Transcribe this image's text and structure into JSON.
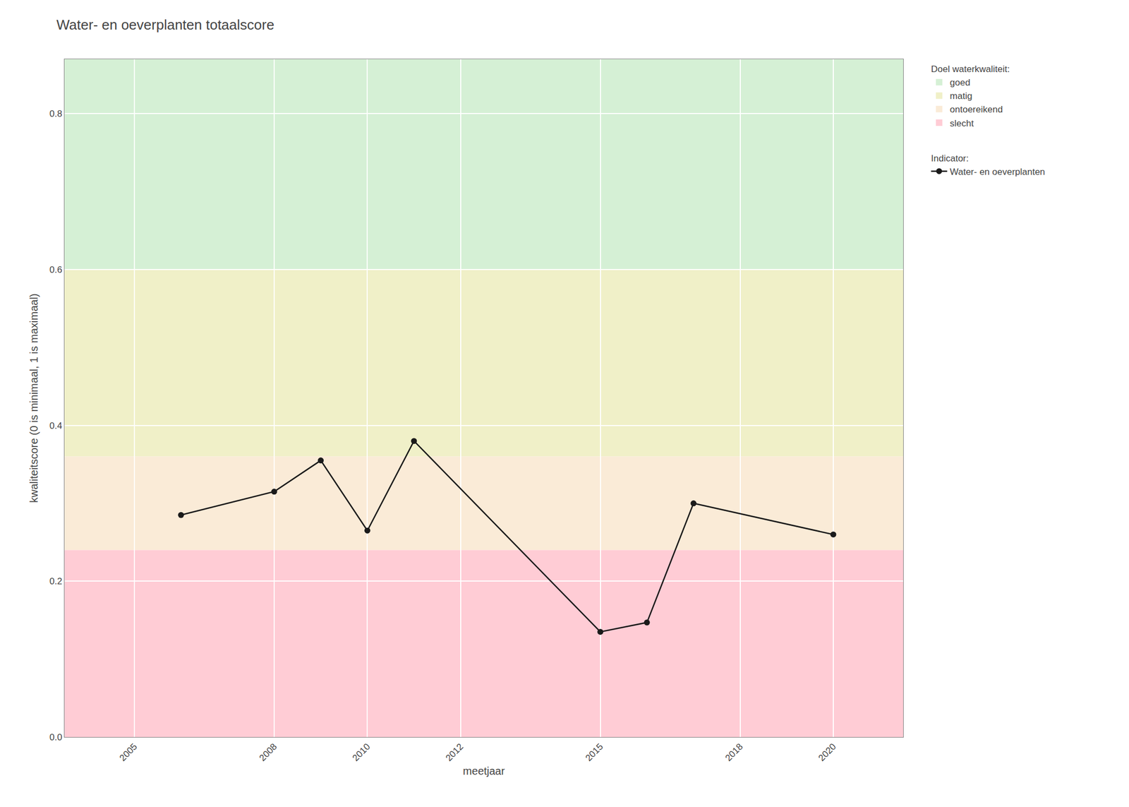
{
  "chart_data": {
    "type": "line",
    "title": "Water- en oeverplanten totaalscore",
    "x_label": "meetjaar",
    "y_label": "kwaliteitscore (0 is minimaal, 1 is maximaal)",
    "x": [
      2006,
      2008,
      2009,
      2010,
      2011,
      2015,
      2016,
      2017,
      2020
    ],
    "series": [
      {
        "name": "Water- en oeverplanten",
        "color": "#1a1a1a",
        "marker": "circle",
        "line_style": "solid",
        "values": [
          0.285,
          0.315,
          0.355,
          0.265,
          0.38,
          0.135,
          0.147,
          0.3,
          0.26
        ]
      }
    ],
    "series_legend_title": "Indicator:",
    "bands_legend_title": "Doel waterkwaliteit:",
    "bands": [
      {
        "name": "goed",
        "color": "#d5f0d5",
        "range": [
          0.6,
          0.87
        ]
      },
      {
        "name": "matig",
        "color": "#f0f0c8",
        "range": [
          0.36,
          0.6
        ]
      },
      {
        "name": "ontoereikend",
        "color": "#faebd7",
        "range": [
          0.24,
          0.36
        ]
      },
      {
        "name": "slecht",
        "color": "#ffccd5",
        "range": [
          0.0,
          0.24
        ]
      }
    ],
    "xlim": [
      2003.5,
      2021.5
    ],
    "ylim": [
      0.0,
      0.87
    ],
    "xticks": [
      2005,
      2008,
      2010,
      2012,
      2015,
      2018,
      2020
    ],
    "yticks": [
      {
        "value": 0.0,
        "label": "0.0"
      },
      0.2,
      0.4,
      0.6,
      0.8
    ],
    "grid": true,
    "legend": "right"
  }
}
